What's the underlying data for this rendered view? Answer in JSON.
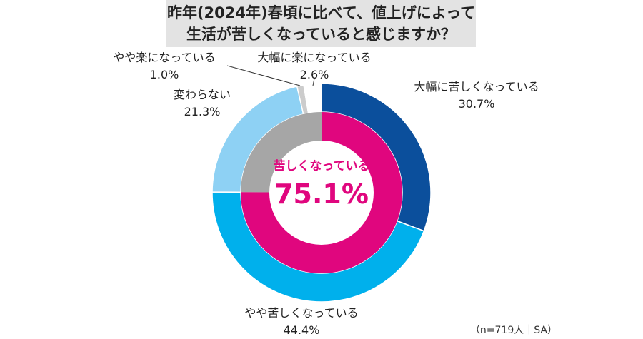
{
  "title": {
    "line1": "昨年(2024年)春頃に比べて、値上げによって",
    "line2": "生活が苦しくなっていると感じますか？"
  },
  "chart_data": {
    "type": "donut",
    "segments": [
      {
        "name": "大幅に苦しくなっている",
        "value": 30.7,
        "label": "30.7%",
        "color": "#0b4f9c"
      },
      {
        "name": "やや苦しくなっている",
        "value": 44.4,
        "label": "44.4%",
        "color": "#00b0ec"
      },
      {
        "name": "変わらない",
        "value": 21.3,
        "label": "21.3%",
        "color": "#8ed1f4"
      },
      {
        "name": "やや楽になっている",
        "value": 1.0,
        "label": "1.0%",
        "color": "#cccccc"
      },
      {
        "name": "大幅に楽になっている",
        "value": 2.6,
        "label": "2.6%",
        "color": "#ffffff"
      }
    ],
    "inner": {
      "name": "苦しくなっている",
      "value": 75.1,
      "label": "75.1%",
      "color": "#e0067e",
      "rest_color": "#a6a6a6"
    }
  },
  "note": "（n=719人｜SA）"
}
